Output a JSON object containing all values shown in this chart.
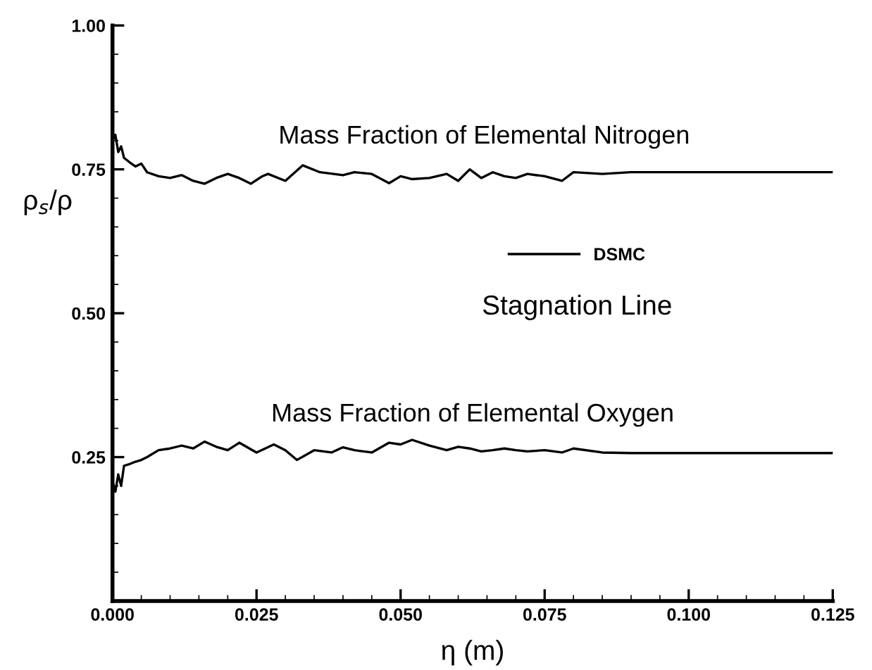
{
  "chart_data": {
    "type": "line",
    "xlabel": "η (m)",
    "ylabel": "ρ$_{s}$/ρ",
    "xlim": [
      0,
      0.125
    ],
    "xticks": [
      {
        "value": 0,
        "label": "0.000"
      },
      {
        "value": 0.025,
        "label": "0.025"
      },
      {
        "value": 0.05,
        "label": "0.050"
      },
      {
        "value": 0.075,
        "label": "0.075"
      },
      {
        "value": 0.1,
        "label": "0.100"
      },
      {
        "value": 0.125,
        "label": "0.125"
      }
    ],
    "ylim": [
      0,
      1
    ],
    "yticks": [
      {
        "value": 0.25,
        "label": "0.25"
      },
      {
        "value": 0.5,
        "label": "0.50"
      },
      {
        "value": 0.75,
        "label": "0.75"
      },
      {
        "value": 1,
        "label": "1.00"
      }
    ],
    "grid": false,
    "legend": "center",
    "marker": "none",
    "line_style": "solid",
    "series": [
      {
        "name": "DSMC",
        "color": "#000000",
        "x": [
          0,
          0.0005,
          0.001,
          0.0015,
          0.002,
          0.003,
          0.004,
          0.005,
          0.006,
          0.008,
          0.01,
          0.012,
          0.014,
          0.016,
          0.018,
          0.02,
          0.022,
          0.024,
          0.026,
          0.027,
          0.03,
          0.033,
          0.036,
          0.04,
          0.042,
          0.045,
          0.048,
          0.05,
          0.052,
          0.055,
          0.058,
          0.06,
          0.062,
          0.064,
          0.066,
          0.068,
          0.07,
          0.072,
          0.075,
          0.078,
          0.08,
          0.085,
          0.09,
          0.1,
          0.11,
          0.125
        ],
        "values": [
          0.8,
          0.81,
          0.78,
          0.79,
          0.77,
          0.762,
          0.755,
          0.76,
          0.745,
          0.738,
          0.735,
          0.74,
          0.73,
          0.725,
          0.735,
          0.742,
          0.735,
          0.725,
          0.738,
          0.742,
          0.73,
          0.757,
          0.745,
          0.74,
          0.745,
          0.742,
          0.726,
          0.738,
          0.733,
          0.735,
          0.742,
          0.73,
          0.75,
          0.735,
          0.745,
          0.738,
          0.735,
          0.742,
          0.738,
          0.73,
          0.745,
          0.742,
          0.745,
          0.745,
          0.745,
          0.745
        ]
      },
      {
        "color": "#000000",
        "x": [
          0,
          0.0005,
          0.001,
          0.0015,
          0.002,
          0.003,
          0.004,
          0.005,
          0.006,
          0.008,
          0.01,
          0.012,
          0.014,
          0.016,
          0.018,
          0.02,
          0.022,
          0.025,
          0.028,
          0.03,
          0.032,
          0.035,
          0.038,
          0.04,
          0.042,
          0.045,
          0.048,
          0.05,
          0.052,
          0.055,
          0.058,
          0.06,
          0.062,
          0.064,
          0.066,
          0.068,
          0.07,
          0.072,
          0.075,
          0.078,
          0.08,
          0.085,
          0.09,
          0.1,
          0.11,
          0.125
        ],
        "values": [
          0.208,
          0.19,
          0.22,
          0.2,
          0.235,
          0.238,
          0.242,
          0.245,
          0.25,
          0.262,
          0.265,
          0.27,
          0.265,
          0.277,
          0.268,
          0.262,
          0.275,
          0.258,
          0.272,
          0.262,
          0.245,
          0.262,
          0.258,
          0.267,
          0.262,
          0.258,
          0.275,
          0.272,
          0.28,
          0.27,
          0.262,
          0.268,
          0.265,
          0.26,
          0.262,
          0.265,
          0.262,
          0.26,
          0.262,
          0.258,
          0.265,
          0.258,
          0.257,
          0.257,
          0.257,
          0.257
        ]
      }
    ],
    "annotations": [
      {
        "text": "Mass Fraction of Elemental Nitrogen",
        "x": 0.0645,
        "y": 0.745
      },
      {
        "text": "Mass Fraction of Elemental Oxygen",
        "x": 0.0625,
        "y": 0.262
      },
      "Stagnation Line"
    ]
  }
}
